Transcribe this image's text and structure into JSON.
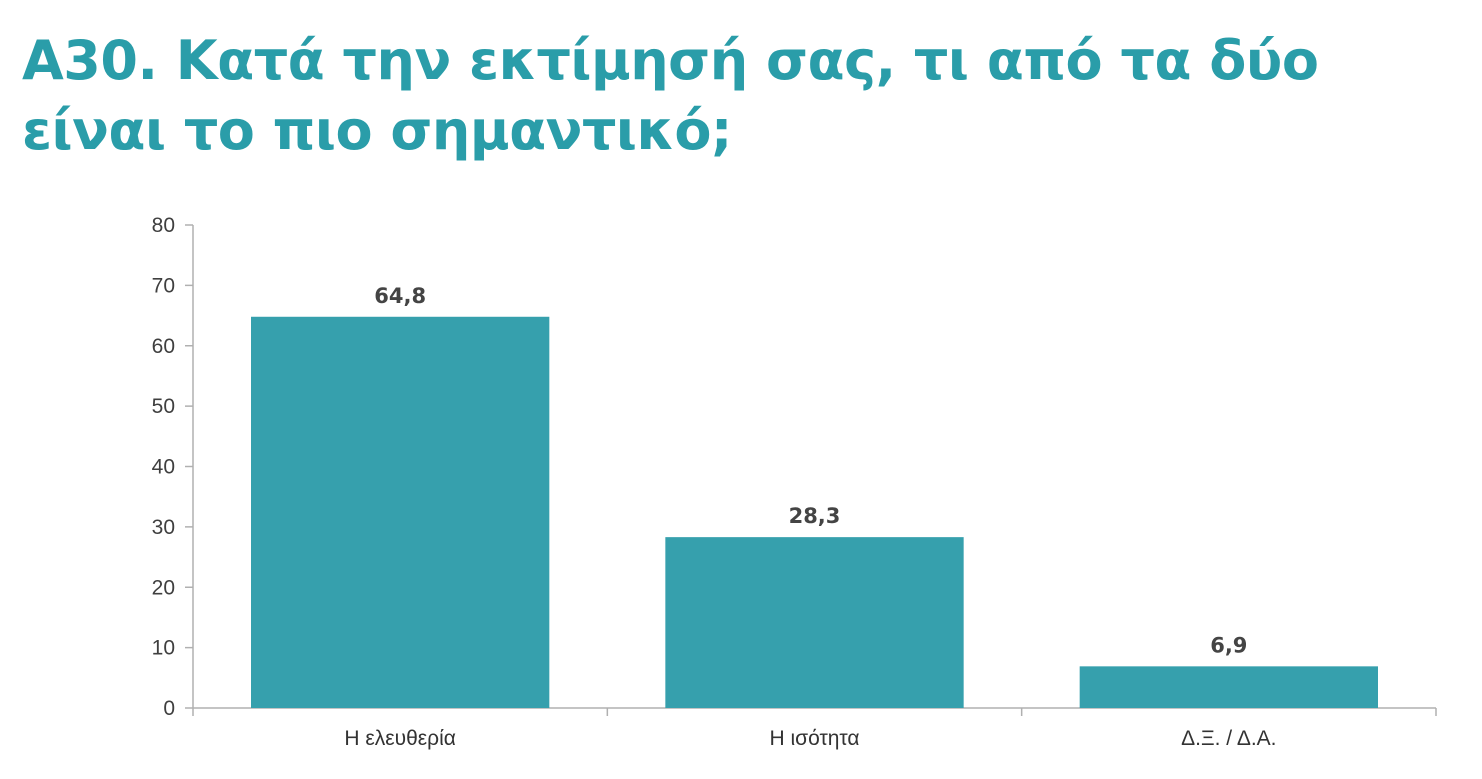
{
  "title": {
    "line1": "Α30. Κατά την εκτίμησή σας, τι από τα δύο",
    "line2": "είναι το πιο σημαντικό;"
  },
  "colors": {
    "title": "#2a9da9",
    "bar": "#36a0ad",
    "axis": "#b0b0b0"
  },
  "chart_data": {
    "type": "bar",
    "categories": [
      "Η ελευθερία",
      "Η ισότητα",
      "Δ.Ξ. / Δ.Α."
    ],
    "values": [
      64.8,
      28.3,
      6.9
    ],
    "value_labels": [
      "64,8",
      "28,3",
      "6,9"
    ],
    "ylim": [
      0,
      80
    ],
    "yticks": [
      0,
      10,
      20,
      30,
      40,
      50,
      60,
      70,
      80
    ],
    "grid": false,
    "legend": "none"
  }
}
